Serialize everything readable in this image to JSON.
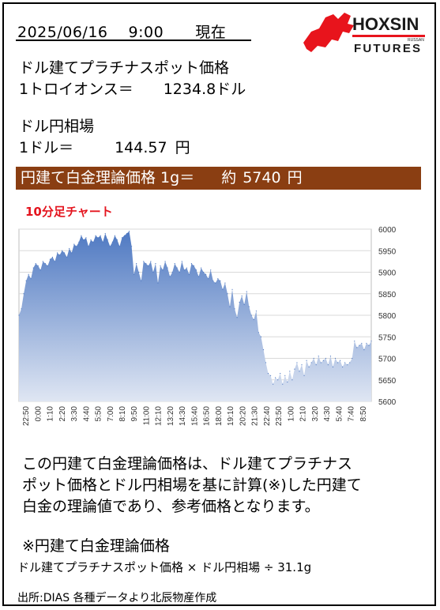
{
  "header": {
    "date": "2025/06/16",
    "time": "9:00",
    "now_label": "現在"
  },
  "logo": {
    "brand": "HOXSIN",
    "sub": "FUTURES",
    "tiny": "RUSSAN",
    "red": "#e8141c",
    "dark": "#1a1a1a"
  },
  "usd_platinum": {
    "title": "ドル建てプラチナスポット価格",
    "unit_label": "1トロイオンス＝",
    "value": "1234.8",
    "unit": "ドル"
  },
  "usd_jpy": {
    "title": "ドル円相場",
    "unit_label": "1ドル＝",
    "value": "144.57",
    "unit": "円"
  },
  "banner": {
    "label": "円建て白金理論価格 1g＝",
    "approx": "約",
    "value": "5740",
    "unit": "円",
    "bg_color": "#8a3e12"
  },
  "chart_title": "10分足チャート",
  "chart_data": {
    "type": "area",
    "title": "10分足チャート",
    "xlabel": "",
    "ylabel": "",
    "ylim": [
      5600,
      6000
    ],
    "yticks": [
      6000,
      5950,
      5900,
      5850,
      5800,
      5750,
      5700,
      5650,
      5600
    ],
    "grid": true,
    "fill_color": "#4f79c2",
    "x_tick_labels": [
      "22:50",
      "0:00",
      "1:10",
      "2:20",
      "3:30",
      "4:40",
      "5:50",
      "7:00",
      "8:10",
      "9:50",
      "11:00",
      "12:10",
      "13:20",
      "14:30",
      "15:40",
      "16:50",
      "18:00",
      "19:10",
      "20:20",
      "21:30",
      "22:40",
      "23:50",
      "1:00",
      "2:10",
      "3:20",
      "4:30",
      "5:40",
      "7:40",
      "8:50"
    ],
    "values": [
      5800,
      5815,
      5850,
      5880,
      5895,
      5885,
      5910,
      5920,
      5915,
      5905,
      5925,
      5920,
      5915,
      5930,
      5935,
      5925,
      5945,
      5940,
      5950,
      5945,
      5935,
      5955,
      5945,
      5965,
      5960,
      5970,
      5985,
      5975,
      5980,
      5960,
      5975,
      5970,
      5985,
      5980,
      5985,
      5970,
      5990,
      5975,
      5960,
      5970,
      5985,
      5975,
      5960,
      5980,
      5985,
      5990,
      5995,
      5960,
      5895,
      5920,
      5900,
      5880,
      5925,
      5920,
      5915,
      5925,
      5900,
      5920,
      5875,
      5915,
      5905,
      5925,
      5910,
      5890,
      5900,
      5920,
      5910,
      5900,
      5925,
      5905,
      5910,
      5895,
      5920,
      5915,
      5905,
      5890,
      5910,
      5900,
      5895,
      5885,
      5905,
      5880,
      5875,
      5885,
      5880,
      5860,
      5875,
      5850,
      5820,
      5860,
      5815,
      5795,
      5830,
      5845,
      5825,
      5855,
      5820,
      5800,
      5790,
      5810,
      5760,
      5750,
      5720,
      5690,
      5665,
      5660,
      5640,
      5655,
      5650,
      5665,
      5640,
      5660,
      5645,
      5670,
      5650,
      5675,
      5690,
      5670,
      5685,
      5660,
      5695,
      5680,
      5690,
      5700,
      5685,
      5705,
      5690,
      5695,
      5700,
      5685,
      5705,
      5680,
      5700,
      5690,
      5695,
      5680,
      5690,
      5685,
      5690,
      5700,
      5740,
      5725,
      5730,
      5735,
      5720,
      5735,
      5730,
      5740
    ]
  },
  "description": [
    "この円建て白金理論価格は、ドル建てプラチナス",
    "ポット価格とドル円相場を基に計算(※)した円建て",
    "白金の理論値であり、参考価格となります。"
  ],
  "note": {
    "title": "※円建て白金理論価格",
    "formula": "ドル建てプラチナスポット価格 × ドル円相場 ÷ 31.1g"
  },
  "source": "出所:DIAS  各種データより北辰物産作成"
}
